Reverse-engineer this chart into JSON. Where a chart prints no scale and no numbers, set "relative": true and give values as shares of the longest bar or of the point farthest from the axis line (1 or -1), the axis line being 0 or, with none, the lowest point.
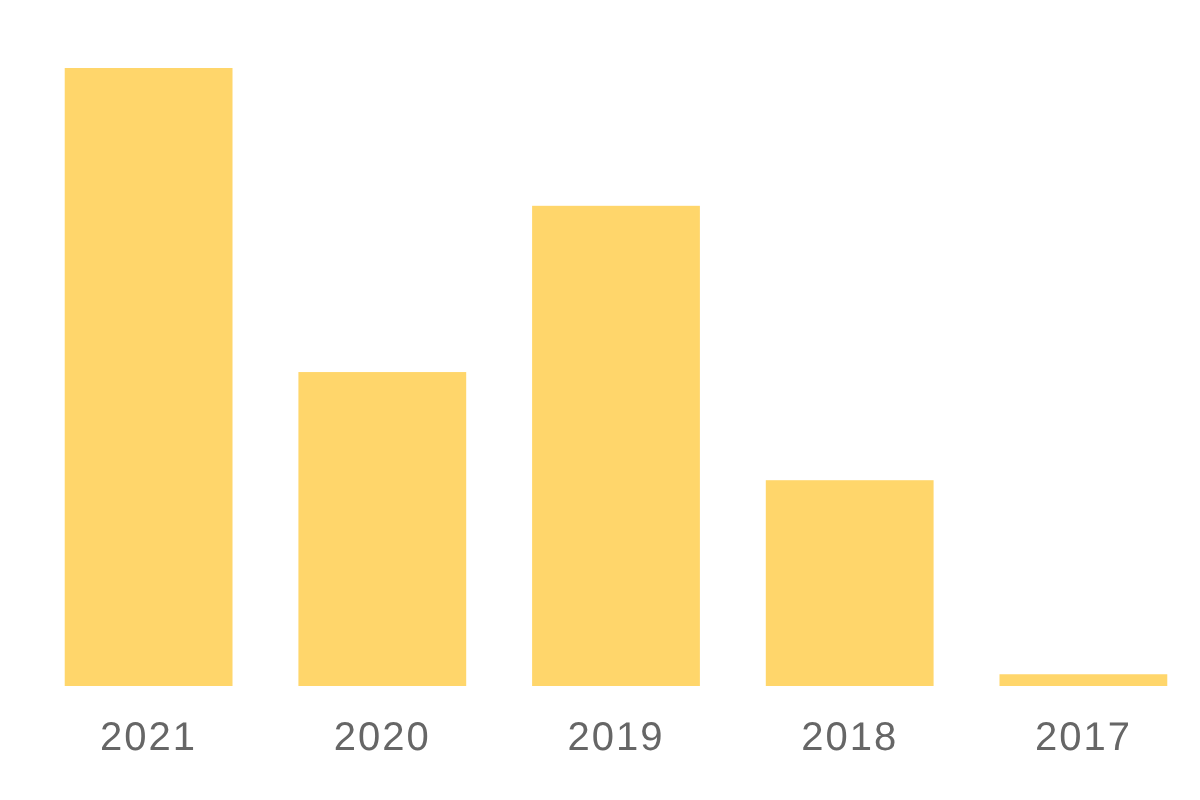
{
  "chart_data": {
    "type": "bar",
    "relative": true,
    "categories": [
      "2021",
      "2020",
      "2019",
      "2018",
      "2017"
    ],
    "values": [
      1,
      0.508,
      0.777,
      0.333,
      0.019
    ],
    "color": "#ffd66b"
  }
}
